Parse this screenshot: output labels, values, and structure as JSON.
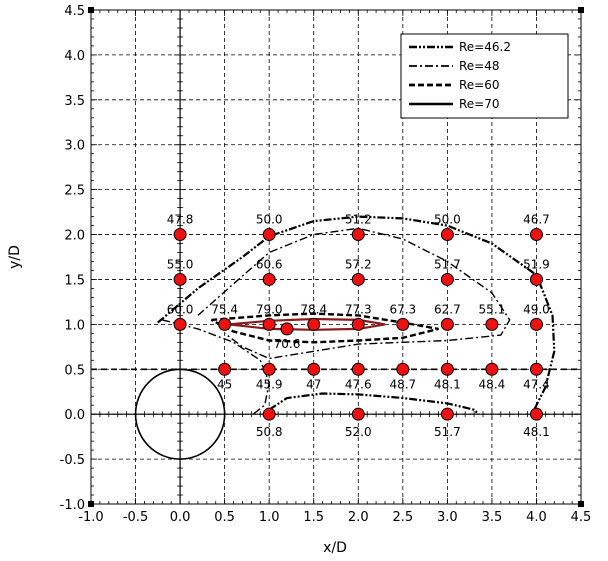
{
  "chart_data": {
    "type": "scatter",
    "xlabel": "x/D",
    "ylabel": "y/D",
    "xlim": [
      -1.0,
      4.5
    ],
    "ylim": [
      -1.0,
      4.5
    ],
    "xticks": [
      "-1.0",
      "-0.5",
      "0.0",
      "0.5",
      "1.0",
      "1.5",
      "2.0",
      "2.5",
      "3.0",
      "3.5",
      "4.0",
      "4.5"
    ],
    "yticks": [
      "-1.0",
      "-0.5",
      "0.0",
      "0.5",
      "1.0",
      "1.5",
      "2.0",
      "2.5",
      "3.0",
      "3.5",
      "4.0",
      "4.5"
    ],
    "grid": true,
    "legend_position": "top-right",
    "series": [
      {
        "name": "Re=46.2",
        "style": "dash-dot-dot",
        "points": [
          [
            -0.25,
            1.02
          ],
          [
            0.2,
            1.4
          ],
          [
            0.7,
            1.75
          ],
          [
            1.0,
            1.98
          ],
          [
            1.5,
            2.15
          ],
          [
            2.0,
            2.2
          ],
          [
            2.5,
            2.18
          ],
          [
            3.0,
            2.1
          ],
          [
            3.5,
            1.9
          ],
          [
            4.0,
            1.55
          ],
          [
            4.18,
            1.1
          ],
          [
            4.2,
            0.7
          ],
          [
            4.1,
            0.3
          ],
          [
            3.95,
            0.0
          ]
        ]
      },
      {
        "name": "Re=48",
        "style": "dash-dot",
        "points": [
          [
            0.2,
            1.1
          ],
          [
            0.6,
            1.45
          ],
          [
            1.0,
            1.8
          ],
          [
            1.5,
            2.0
          ],
          [
            2.0,
            2.07
          ],
          [
            2.5,
            1.95
          ],
          [
            3.0,
            1.7
          ],
          [
            3.5,
            1.35
          ],
          [
            3.7,
            1.05
          ],
          [
            3.6,
            0.88
          ],
          [
            3.0,
            0.82
          ],
          [
            2.0,
            0.78
          ],
          [
            1.5,
            0.7
          ],
          [
            1.0,
            0.62
          ],
          [
            0.7,
            0.75
          ],
          [
            0.5,
            0.9
          ]
        ]
      },
      {
        "name": "Re=60",
        "style": "dashed",
        "points": [
          [
            0.35,
            1.05
          ],
          [
            1.0,
            1.1
          ],
          [
            1.5,
            1.12
          ],
          [
            2.0,
            1.1
          ],
          [
            2.5,
            1.02
          ],
          [
            2.9,
            0.95
          ],
          [
            2.5,
            0.85
          ],
          [
            2.0,
            0.82
          ],
          [
            1.5,
            0.8
          ],
          [
            1.0,
            0.82
          ],
          [
            0.6,
            0.92
          ],
          [
            0.35,
            1.05
          ]
        ]
      },
      {
        "name": "Re=70",
        "style": "solid",
        "points": [
          [
            0.55,
            1.0
          ],
          [
            1.0,
            1.04
          ],
          [
            1.5,
            1.06
          ],
          [
            2.0,
            1.05
          ],
          [
            2.3,
            1.0
          ],
          [
            2.0,
            0.95
          ],
          [
            1.5,
            0.94
          ],
          [
            1.0,
            0.95
          ],
          [
            0.55,
            1.0
          ]
        ]
      },
      {
        "name": "",
        "style": "dash-dot-dot",
        "points": [
          [
            1.0,
            0.05
          ],
          [
            1.2,
            0.18
          ],
          [
            1.6,
            0.23
          ],
          [
            2.0,
            0.22
          ],
          [
            2.5,
            0.18
          ],
          [
            3.0,
            0.12
          ],
          [
            3.3,
            0.05
          ],
          [
            3.35,
            0.0
          ]
        ]
      },
      {
        "name": "",
        "style": "dash-dot",
        "points": [
          [
            -0.2,
            1.05
          ],
          [
            0.2,
            0.95
          ],
          [
            0.6,
            0.8
          ],
          [
            0.9,
            0.6
          ],
          [
            1.0,
            0.35
          ],
          [
            0.95,
            0.1
          ],
          [
            0.82,
            0.0
          ]
        ]
      }
    ],
    "cylinder": {
      "cx": 0.0,
      "cy": 0.0,
      "r": 0.5
    },
    "dashed_line_y": 0.5,
    "measurement_points": [
      {
        "x": 0.0,
        "y": 2.0,
        "label": "47.8"
      },
      {
        "x": 1.0,
        "y": 2.0,
        "label": "50.0"
      },
      {
        "x": 2.0,
        "y": 2.0,
        "label": "51.2"
      },
      {
        "x": 3.0,
        "y": 2.0,
        "label": "50.0"
      },
      {
        "x": 4.0,
        "y": 2.0,
        "label": "46.7"
      },
      {
        "x": 0.0,
        "y": 1.5,
        "label": "55.0"
      },
      {
        "x": 1.0,
        "y": 1.5,
        "label": "60.6"
      },
      {
        "x": 2.0,
        "y": 1.5,
        "label": "57.2"
      },
      {
        "x": 3.0,
        "y": 1.5,
        "label": "51.7"
      },
      {
        "x": 4.0,
        "y": 1.5,
        "label": "51.9"
      },
      {
        "x": 0.0,
        "y": 1.0,
        "label": "60.0"
      },
      {
        "x": 0.5,
        "y": 1.0,
        "label": "75.4"
      },
      {
        "x": 1.0,
        "y": 1.0,
        "label": "79.0"
      },
      {
        "x": 1.2,
        "y": 0.95,
        "label": "70.6"
      },
      {
        "x": 1.5,
        "y": 1.0,
        "label": "78.4"
      },
      {
        "x": 2.0,
        "y": 1.0,
        "label": "77.3"
      },
      {
        "x": 2.5,
        "y": 1.0,
        "label": "67.3"
      },
      {
        "x": 3.0,
        "y": 1.0,
        "label": "62.7"
      },
      {
        "x": 3.5,
        "y": 1.0,
        "label": "55.1"
      },
      {
        "x": 4.0,
        "y": 1.0,
        "label": "49.0"
      },
      {
        "x": 0.5,
        "y": 0.5,
        "label": "45"
      },
      {
        "x": 1.0,
        "y": 0.5,
        "label": "45.9"
      },
      {
        "x": 1.5,
        "y": 0.5,
        "label": "47"
      },
      {
        "x": 2.0,
        "y": 0.5,
        "label": "47.6"
      },
      {
        "x": 2.5,
        "y": 0.5,
        "label": "48.7"
      },
      {
        "x": 3.0,
        "y": 0.5,
        "label": "48.1"
      },
      {
        "x": 3.5,
        "y": 0.5,
        "label": "48.4"
      },
      {
        "x": 4.0,
        "y": 0.5,
        "label": "47.4"
      },
      {
        "x": 1.0,
        "y": 0.0,
        "label": "50.8"
      },
      {
        "x": 2.0,
        "y": 0.0,
        "label": "52.0"
      },
      {
        "x": 3.0,
        "y": 0.0,
        "label": "51.7"
      },
      {
        "x": 4.0,
        "y": 0.0,
        "label": "48.1"
      }
    ],
    "colors": {
      "marker_fill": "#ee1111",
      "marker_stroke": "#000000",
      "grid": "#000000",
      "line": "#000000",
      "inner_contour": "#8b1a1a"
    }
  }
}
